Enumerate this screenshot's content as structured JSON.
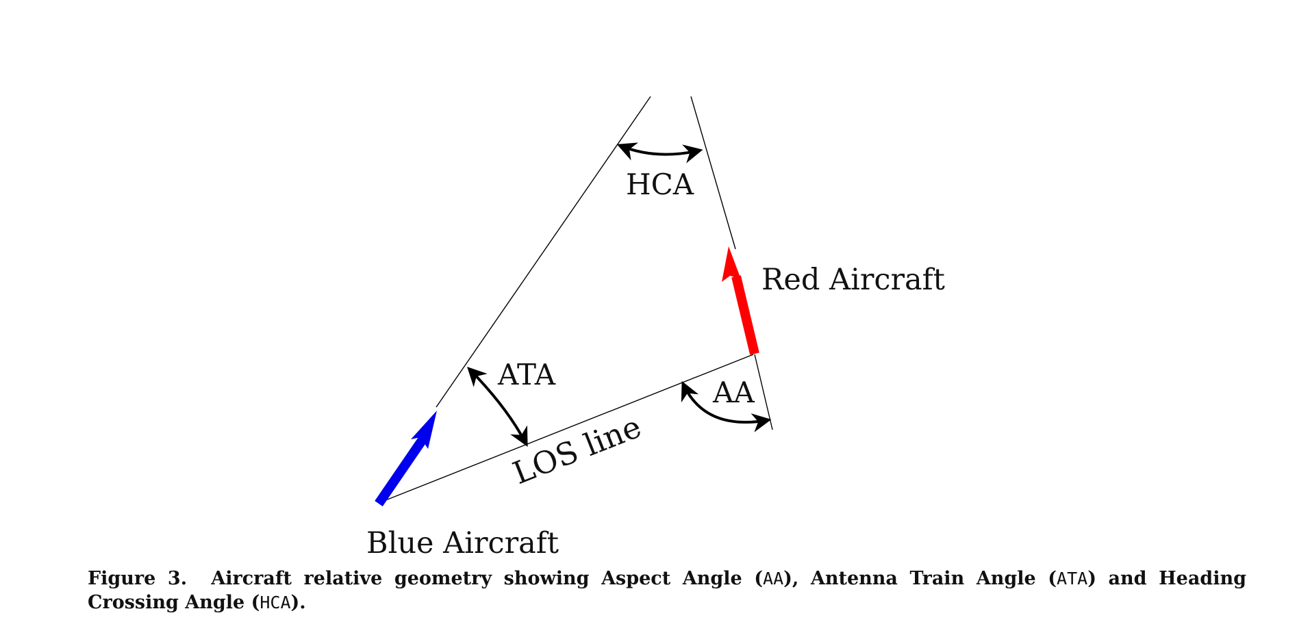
{
  "labels": {
    "hca": "HCA",
    "ata": "ATA",
    "aa": "AA",
    "los": "LOS line",
    "red": "Red Aircraft",
    "blue": "Blue Aircraft"
  },
  "caption": {
    "figure": "Figure 3.",
    "text_1": "Aircraft relative geometry showing Aspect Angle (",
    "aa": "AA",
    "text_2": "), Antenna Train Angle (",
    "ata": "ATA",
    "text_3": ") and Heading Crossing Angle (",
    "hca": "HCA",
    "text_4": ")."
  },
  "colors": {
    "blue_aircraft": "#0000ee",
    "red_aircraft": "#ff0000",
    "line": "#000000"
  }
}
